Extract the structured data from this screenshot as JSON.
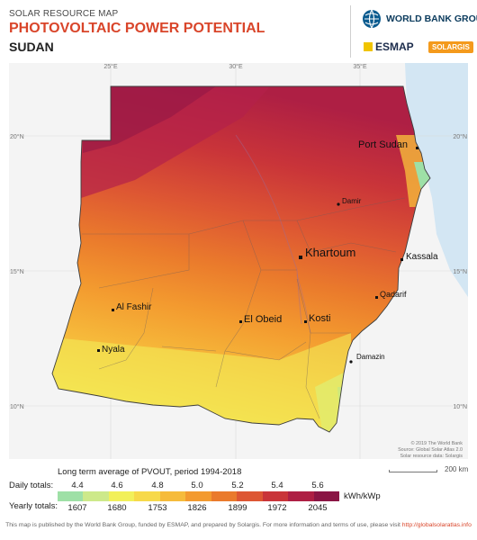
{
  "header": {
    "supertitle": "SOLAR RESOURCE MAP",
    "title": "PHOTOVOLTAIC POWER POTENTIAL",
    "country": "SUDAN"
  },
  "logos": {
    "world_bank": "WORLD BANK GROUP",
    "esmap": "ESMAP",
    "solargis": "SOLARGIS"
  },
  "graticule": {
    "longitudes": [
      "25°E",
      "30°E",
      "35°E"
    ],
    "latitudes": [
      "20°N",
      "15°N",
      "10°N"
    ]
  },
  "cities": [
    {
      "name": "Port Sudan"
    },
    {
      "name": "Damir"
    },
    {
      "name": "Khartoum"
    },
    {
      "name": "Kassala"
    },
    {
      "name": "Al Fashir"
    },
    {
      "name": "Qadarif"
    },
    {
      "name": "El Obeid"
    },
    {
      "name": "Kosti"
    },
    {
      "name": "Nyala"
    },
    {
      "name": "Damazin"
    }
  ],
  "credits": {
    "line1": "© 2019 The World Bank",
    "line2": "Source: Global Solar Atlas 2.0",
    "line3": "Solar resource data: Solargis"
  },
  "scale": {
    "label": "200 km"
  },
  "legend": {
    "title": "Long term average of PVOUT, period 1994-2018",
    "daily_label": "Daily totals:",
    "yearly_label": "Yearly totals:",
    "unit": "kWh/kWp",
    "daily_ticks": [
      "4.4",
      "4.6",
      "4.8",
      "5.0",
      "5.2",
      "5.4",
      "5.6"
    ],
    "yearly_ticks": [
      "1607",
      "1680",
      "1753",
      "1826",
      "1899",
      "1972",
      "2045"
    ],
    "colors": [
      "#9ee0a6",
      "#cde98a",
      "#f2f05a",
      "#f7d94a",
      "#f6bb3b",
      "#f39a2f",
      "#ea7a2c",
      "#dd5633",
      "#c93439",
      "#ae1f44",
      "#8a1544"
    ]
  },
  "footer": {
    "text": "This map is published by the World Bank Group, funded by ESMAP, and prepared by Solargis. For more information and terms of use, please visit",
    "link": "http://globalsolaratlas.info"
  }
}
